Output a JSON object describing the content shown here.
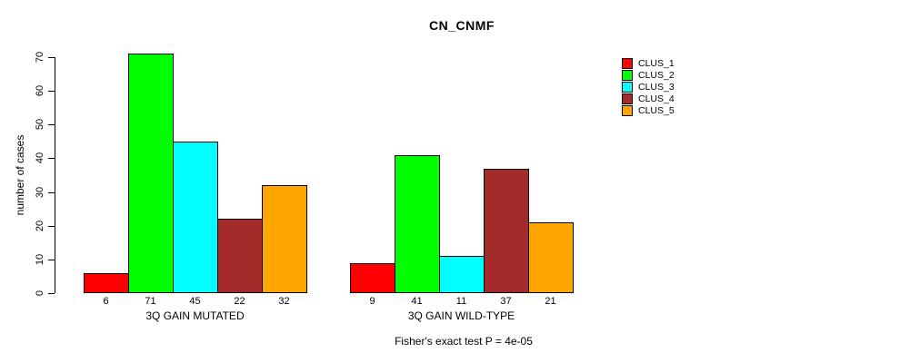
{
  "title": "CN_CNMF",
  "chart_data": {
    "type": "bar",
    "title": "CN_CNMF",
    "ylabel": "number of cases",
    "xlabel": "",
    "ylim": [
      0,
      70
    ],
    "yticks": [
      0,
      10,
      20,
      30,
      40,
      50,
      60,
      70
    ],
    "categories": [
      "3Q GAIN MUTATED",
      "3Q GAIN WILD-TYPE"
    ],
    "series": [
      {
        "name": "CLUS_1",
        "color": "#FF0000",
        "values": [
          6,
          9
        ]
      },
      {
        "name": "CLUS_2",
        "color": "#00FF00",
        "values": [
          71,
          41
        ]
      },
      {
        "name": "CLUS_3",
        "color": "#00FFFF",
        "values": [
          45,
          11
        ]
      },
      {
        "name": "CLUS_4",
        "color": "#A52A2A",
        "values": [
          22,
          37
        ]
      },
      {
        "name": "CLUS_5",
        "color": "#FFA500",
        "values": [
          32,
          21
        ]
      }
    ],
    "value_labels": [
      [
        "6",
        "71",
        "45",
        "22",
        "32"
      ],
      [
        "9",
        "41",
        "11",
        "37",
        "21"
      ]
    ],
    "legend_position": "right",
    "grid": false,
    "footnote": "Fisher's exact test P = 4e-05"
  }
}
